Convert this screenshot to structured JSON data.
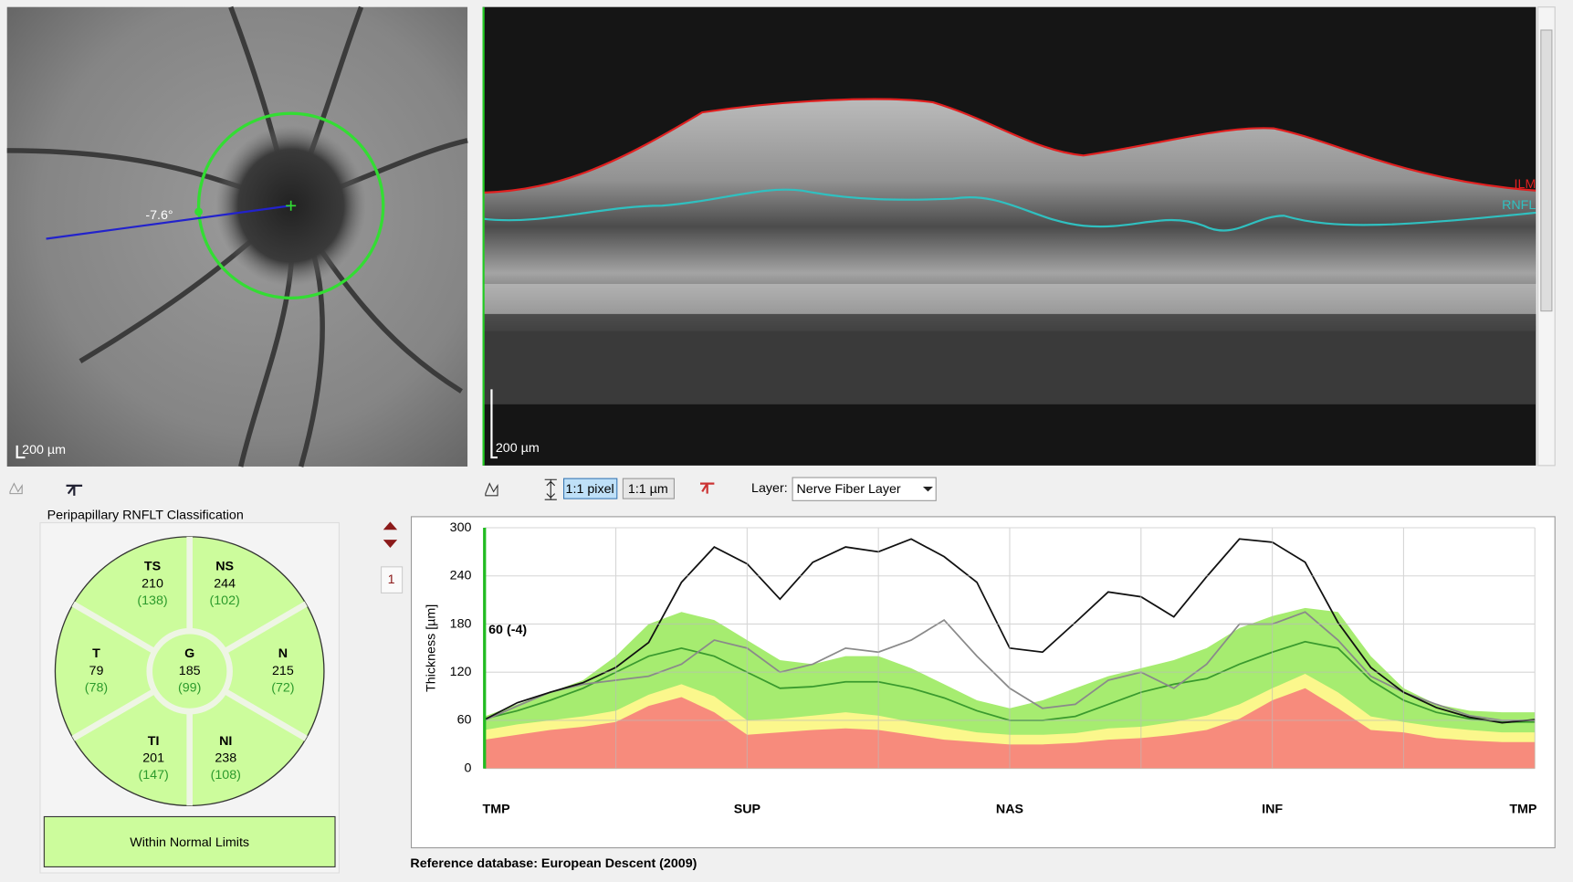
{
  "fundus": {
    "scale_label": "200 µm",
    "angle_label": "-7.6°"
  },
  "bscan": {
    "scale_label": "200 µm",
    "ilm_label": "ILM",
    "rnfl_label": "RNFL"
  },
  "toolbar": {
    "pixel_button": "1:1 pixel",
    "um_button": "1:1 µm",
    "layer_label": "Layer:",
    "layer_value": "Nerve Fiber Layer",
    "page": "1"
  },
  "classification": {
    "title": "Peripapillary RNFLT Classification",
    "sectors": [
      {
        "name": "TS",
        "value": 210,
        "reference": "(138)"
      },
      {
        "name": "NS",
        "value": 244,
        "reference": "(102)"
      },
      {
        "name": "T",
        "value": 79,
        "reference": "(78)"
      },
      {
        "name": "G",
        "value": 185,
        "reference": "(99)"
      },
      {
        "name": "N",
        "value": 215,
        "reference": "(72)"
      },
      {
        "name": "TI",
        "value": 201,
        "reference": "(147)"
      },
      {
        "name": "NI",
        "value": 238,
        "reference": "(108)"
      }
    ],
    "result": "Within Normal Limits"
  },
  "chart_data": {
    "type": "line",
    "ylabel": "Thickness [µm]",
    "annotation": "60 (-4)",
    "x": [
      0,
      1,
      2,
      3,
      4,
      5,
      6,
      7,
      8,
      9,
      10,
      11,
      12,
      13,
      14,
      15,
      16,
      17,
      18,
      19,
      20,
      21,
      22,
      23,
      24,
      25,
      26,
      27,
      28,
      29,
      30,
      31,
      32
    ],
    "xlim": [
      0,
      32
    ],
    "xticks": [
      0,
      4,
      8,
      12,
      16,
      20,
      24,
      28,
      32
    ],
    "x_labels": [
      {
        "value": 0,
        "label": "TMP"
      },
      {
        "value": 8,
        "label": "SUP"
      },
      {
        "value": 16,
        "label": "NAS"
      },
      {
        "value": 24,
        "label": "INF"
      },
      {
        "value": 32,
        "label": "TMP"
      }
    ],
    "ylim": [
      0,
      300
    ],
    "yticks": [
      0,
      60,
      120,
      180,
      240,
      300
    ],
    "grid": true,
    "series": [
      {
        "style": "area",
        "color": "#a6ec70",
        "values": [
          65,
          80,
          95,
          110,
          140,
          180,
          195,
          185,
          160,
          135,
          130,
          140,
          140,
          125,
          105,
          85,
          75,
          85,
          100,
          115,
          125,
          135,
          150,
          175,
          190,
          200,
          195,
          140,
          100,
          80,
          72,
          70,
          70
        ]
      },
      {
        "style": "area",
        "color": "#fbf78c",
        "values": [
          48,
          55,
          60,
          65,
          72,
          92,
          105,
          90,
          60,
          62,
          66,
          70,
          66,
          58,
          52,
          45,
          42,
          42,
          44,
          50,
          52,
          58,
          66,
          80,
          100,
          118,
          95,
          65,
          58,
          52,
          48,
          45,
          45
        ]
      },
      {
        "style": "area",
        "color": "#f78b7c",
        "values": [
          36,
          42,
          48,
          52,
          58,
          78,
          89,
          70,
          42,
          45,
          48,
          50,
          48,
          42,
          36,
          33,
          30,
          30,
          32,
          36,
          38,
          42,
          48,
          62,
          85,
          100,
          75,
          48,
          45,
          38,
          35,
          33,
          33
        ]
      },
      {
        "style": "line",
        "color": "#3a9a2e",
        "values": [
          62,
          72,
          85,
          100,
          120,
          140,
          150,
          140,
          120,
          100,
          102,
          108,
          108,
          100,
          88,
          72,
          60,
          60,
          65,
          80,
          95,
          105,
          112,
          130,
          145,
          158,
          150,
          110,
          85,
          70,
          62,
          58,
          58
        ]
      },
      {
        "style": "line",
        "color": "#8a8a8a",
        "values": [
          60,
          78,
          95,
          105,
          110,
          115,
          130,
          160,
          150,
          120,
          130,
          150,
          145,
          160,
          185,
          140,
          100,
          75,
          80,
          110,
          120,
          100,
          130,
          180,
          180,
          195,
          160,
          115,
          95,
          80,
          66,
          60,
          60
        ]
      },
      {
        "style": "line",
        "color": "#111111",
        "values": [
          61,
          82,
          95,
          107,
          126,
          157,
          232,
          276,
          255,
          211,
          257,
          276,
          270,
          286,
          264,
          232,
          150,
          145,
          182,
          220,
          214,
          189,
          239,
          286,
          282,
          257,
          182,
          126,
          95,
          76,
          64,
          57,
          61
        ]
      }
    ]
  },
  "footer": "Reference database: European Descent (2009)"
}
